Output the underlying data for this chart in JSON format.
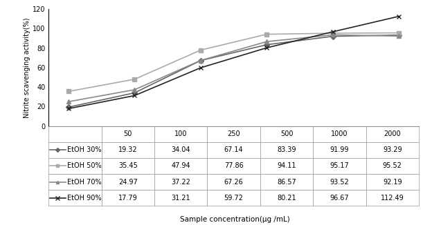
{
  "x_labels": [
    "50",
    "100",
    "250",
    "500",
    "1000",
    "2000"
  ],
  "x_positions": [
    0,
    1,
    2,
    3,
    4,
    5
  ],
  "series": [
    {
      "label": "EtOH 30%",
      "values": [
        19.32,
        34.04,
        67.14,
        83.39,
        91.99,
        93.29
      ],
      "color": "#666666",
      "marker": "D",
      "markersize": 4,
      "linewidth": 1.2,
      "linestyle": "-"
    },
    {
      "label": "EtOH 50%",
      "values": [
        35.45,
        47.94,
        77.86,
        94.11,
        95.17,
        95.52
      ],
      "color": "#aaaaaa",
      "marker": "s",
      "markersize": 4,
      "linewidth": 1.2,
      "linestyle": "-"
    },
    {
      "label": "EtOH 70%",
      "values": [
        24.97,
        37.22,
        67.26,
        86.57,
        93.52,
        92.19
      ],
      "color": "#888888",
      "marker": "^",
      "markersize": 4,
      "linewidth": 1.2,
      "linestyle": "-"
    },
    {
      "label": "EtOH 90%",
      "values": [
        17.79,
        31.21,
        59.72,
        80.21,
        96.67,
        112.49
      ],
      "color": "#222222",
      "marker": "x",
      "markersize": 5,
      "linewidth": 1.2,
      "linestyle": "-"
    }
  ],
  "ylabel": "Nitrite scavenging activity(%)",
  "xlabel": "Sample concentration(μg /mL)",
  "ylim": [
    0,
    120
  ],
  "yticks": [
    0,
    20,
    40,
    60,
    80,
    100,
    120
  ],
  "table_col_labels": [
    "",
    "50",
    "100",
    "250",
    "500",
    "1000",
    "2000"
  ],
  "table_rows": [
    [
      "—◆— EtOH 30%",
      "19.32",
      "34.04",
      "67.14",
      "83.39",
      "91.99",
      "93.29"
    ],
    [
      "—■— EtOH 50%",
      "35.45",
      "47.94",
      "77.86",
      "94.11",
      "95.17",
      "95.52"
    ],
    [
      "—▲— EtOH 70%",
      "24.97",
      "37.22",
      "67.26",
      "86.57",
      "93.52",
      "92.19"
    ],
    [
      "—×— EtOH 90%",
      "17.79",
      "31.21",
      "59.72",
      "80.21",
      "96.67",
      "112.49"
    ]
  ],
  "font_size": 7.0
}
